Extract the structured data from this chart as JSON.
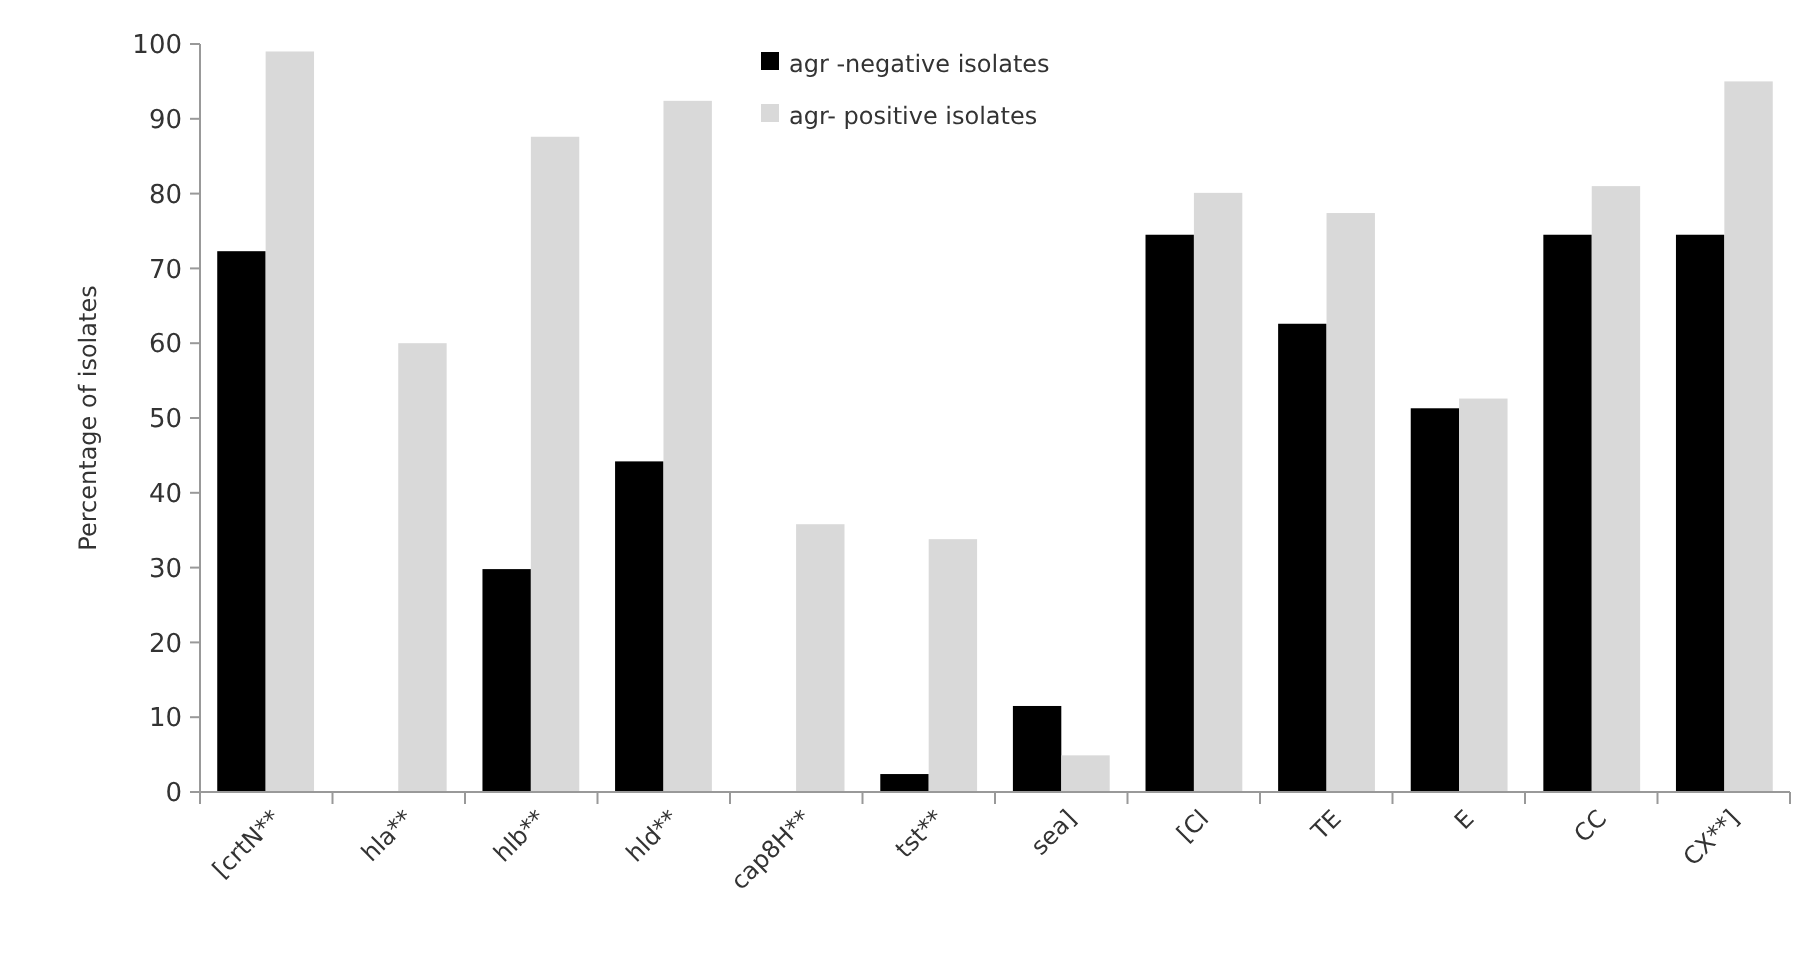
{
  "chart_data": {
    "type": "bar",
    "ylabel": "Percentage of isolates",
    "categories": [
      "[crtN**",
      "hla**",
      "hlb**",
      "hld**",
      "cap8H**",
      "tst**",
      "sea]",
      "[Cl",
      "TE",
      "E",
      "CC",
      "CX**]"
    ],
    "series": [
      {
        "name": "agr -negative isolates",
        "color": "#000000",
        "values": [
          72.3,
          0,
          29.8,
          44.2,
          0,
          2.4,
          11.5,
          74.5,
          62.6,
          51.3,
          74.5,
          74.5
        ]
      },
      {
        "name": "agr- positive isolates",
        "color": "#d9d9d9",
        "values": [
          99,
          60,
          87.6,
          92.4,
          35.8,
          33.8,
          4.9,
          80.1,
          77.4,
          52.6,
          81,
          95
        ]
      }
    ],
    "ylim": [
      0,
      100
    ],
    "yticks": [
      0,
      10,
      20,
      30,
      40,
      50,
      60,
      70,
      80,
      90,
      100
    ],
    "grid": false,
    "legend": "top"
  }
}
